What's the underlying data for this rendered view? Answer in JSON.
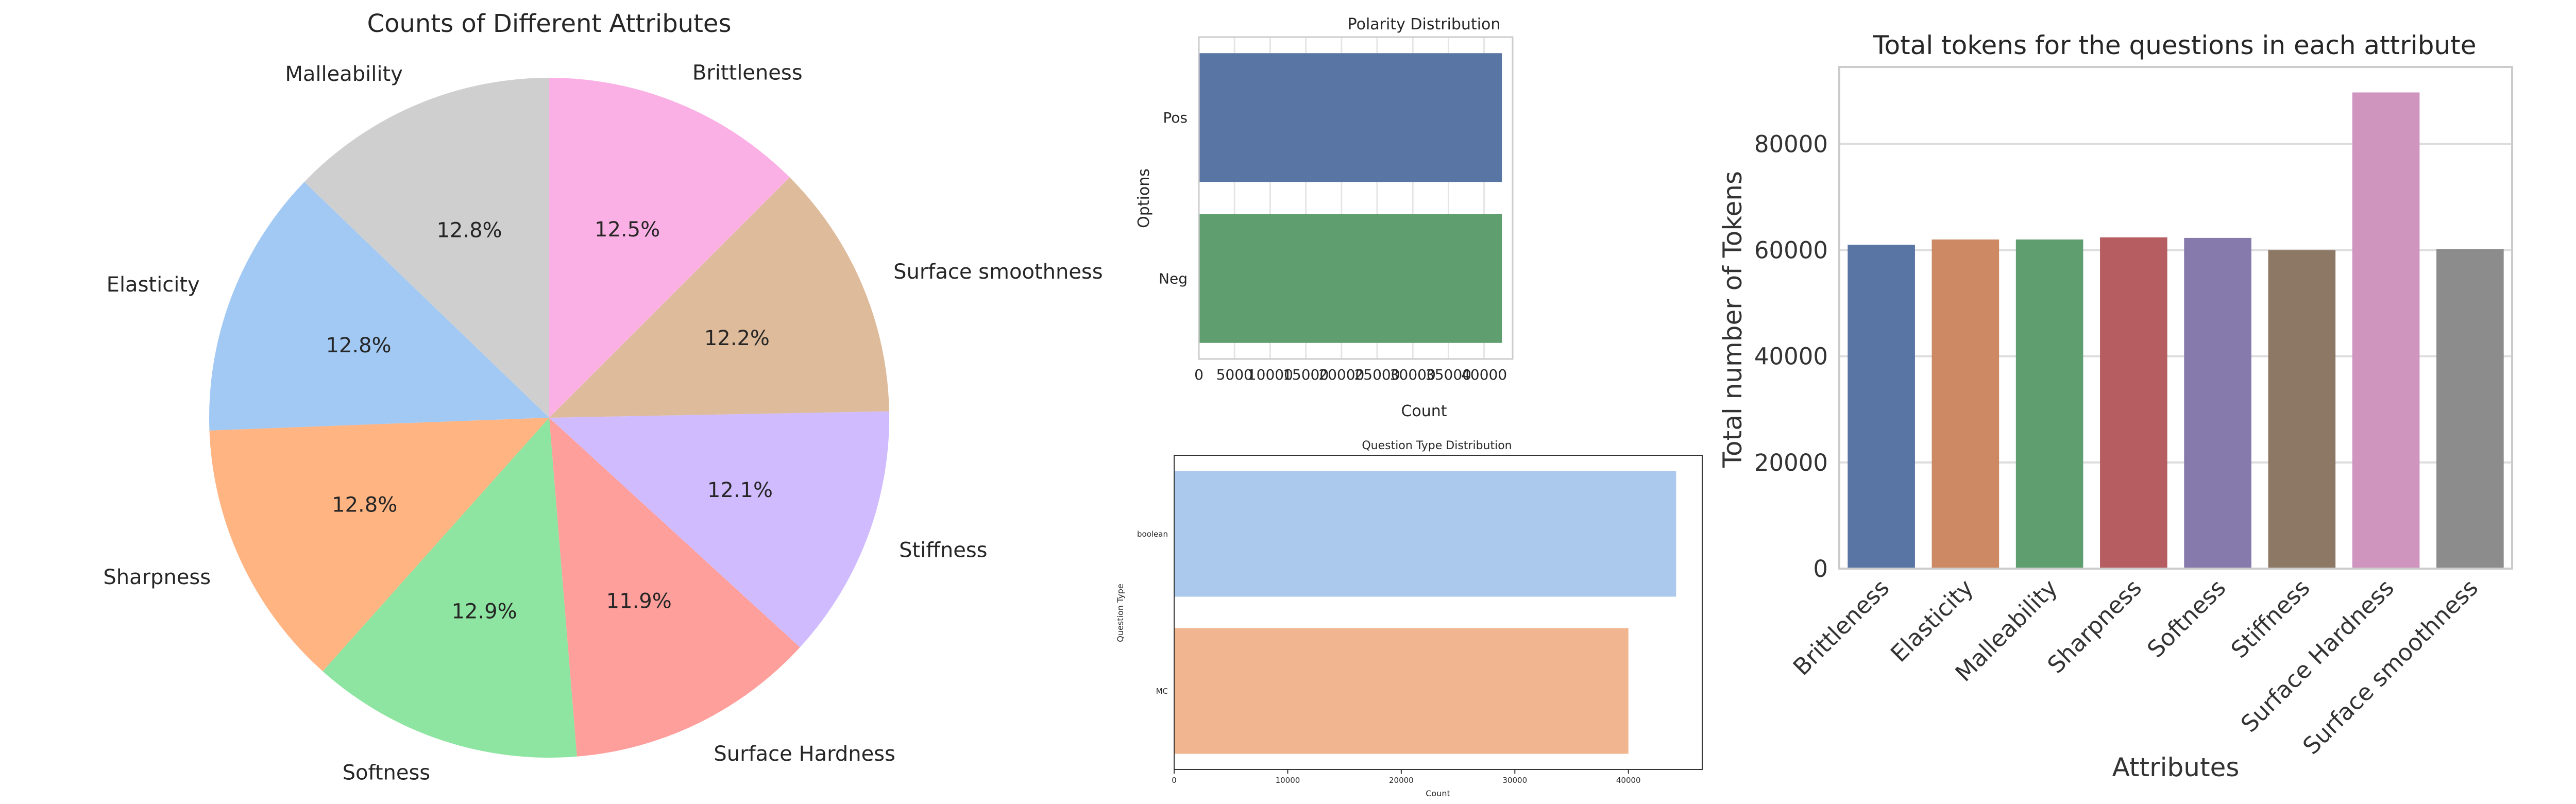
{
  "chart_data": [
    {
      "type": "pie",
      "title": "Counts of Different Attributes",
      "categories": [
        "Malleability",
        "Elasticity",
        "Sharpness",
        "Softness",
        "Surface Hardness",
        "Stiffness",
        "Surface smoothness",
        "Brittleness"
      ],
      "values": [
        12.8,
        12.8,
        12.8,
        12.9,
        11.9,
        12.1,
        12.2,
        12.5
      ],
      "percent_labels": [
        "12.8%",
        "12.8%",
        "12.8%",
        "12.9%",
        "11.9%",
        "12.1%",
        "12.2%",
        "12.5%"
      ],
      "colors": [
        "#cfcfcf",
        "#a1c9f4",
        "#ffb482",
        "#8de5a1",
        "#ff9f9b",
        "#d0bbff",
        "#debb9b",
        "#fab0e4"
      ]
    },
    {
      "type": "bar",
      "orientation": "horizontal",
      "title": "Polarity Distribution",
      "categories": [
        "Pos",
        "Neg"
      ],
      "values": [
        42500,
        42500
      ],
      "colors": [
        "#5975a4",
        "#5f9e6e"
      ],
      "xlabel": "Count",
      "ylabel": "Options",
      "xlim": [
        0,
        44000
      ],
      "xticks": [
        0,
        5000,
        10000,
        15000,
        20000,
        25000,
        30000,
        35000,
        40000
      ],
      "grid": true
    },
    {
      "type": "bar",
      "orientation": "horizontal",
      "title": "Question Type Distribution",
      "categories": [
        "boolean",
        "MC"
      ],
      "values": [
        44200,
        40000
      ],
      "colors": [
        "#abc9ed",
        "#f1b690"
      ],
      "xlabel": "Count",
      "ylabel": "Question Type",
      "xlim": [
        0,
        46500
      ],
      "xticks": [
        0,
        10000,
        20000,
        30000,
        40000
      ],
      "grid": false
    },
    {
      "type": "bar",
      "title": "Total tokens for the questions in each attribute",
      "categories": [
        "Brittleness",
        "Elasticity",
        "Malleability",
        "Sharpness",
        "Softness",
        "Stiffness",
        "Surface Hardness",
        "Surface smoothness"
      ],
      "values": [
        61000,
        62000,
        62000,
        62400,
        62300,
        60000,
        89700,
        60200
      ],
      "colors": [
        "#5975a4",
        "#cc8963",
        "#5f9e6e",
        "#b55d60",
        "#857aab",
        "#8d7866",
        "#d095bf",
        "#8c8c8c"
      ],
      "xlabel": "Attributes",
      "ylabel": "Total number of Tokens",
      "ylim": [
        0,
        94500
      ],
      "yticks": [
        0,
        20000,
        40000,
        60000,
        80000
      ],
      "grid": true
    }
  ]
}
